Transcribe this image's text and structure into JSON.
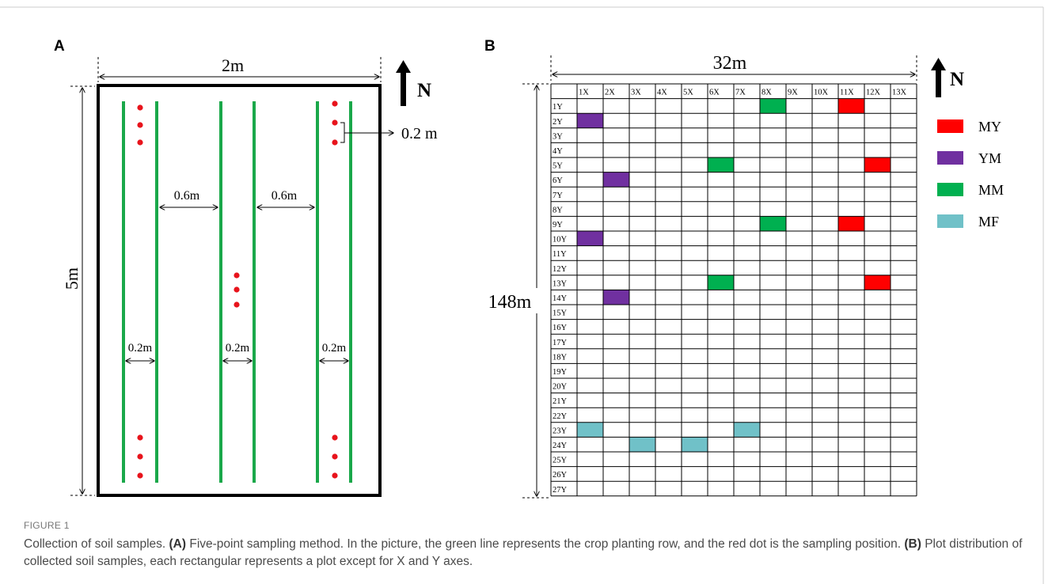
{
  "panel_a": {
    "label": "A",
    "width_label": "2m",
    "height_label": "5m",
    "north_label": "N",
    "gap_label": "0.2 m",
    "row_spacing_labels": [
      "0.6m",
      "0.6m"
    ],
    "row_width_labels": [
      "0.2m",
      "0.2m",
      "0.2m"
    ],
    "colors": {
      "row": "#1aa84a",
      "dot": "#e8141c",
      "border": "#000000"
    }
  },
  "panel_b": {
    "label": "B",
    "width_label": "32m",
    "height_label": "148m",
    "north_label": "N",
    "columns": [
      "1X",
      "2X",
      "3X",
      "4X",
      "5X",
      "6X",
      "7X",
      "8X",
      "9X",
      "10X",
      "11X",
      "12X",
      "13X"
    ],
    "rows": [
      "1Y",
      "2Y",
      "3Y",
      "4Y",
      "5Y",
      "6Y",
      "7Y",
      "8Y",
      "9Y",
      "10Y",
      "11Y",
      "12Y",
      "13Y",
      "14Y",
      "15Y",
      "16Y",
      "17Y",
      "18Y",
      "19Y",
      "20Y",
      "21Y",
      "22Y",
      "23Y",
      "24Y",
      "25Y",
      "26Y",
      "27Y"
    ],
    "legend": [
      {
        "key": "MY",
        "label": "MY",
        "color": "#ff0000"
      },
      {
        "key": "YM",
        "label": "YM",
        "color": "#7030a0"
      },
      {
        "key": "MM",
        "label": "MM",
        "color": "#00b050"
      },
      {
        "key": "MF",
        "label": "MF",
        "color": "#70c1c8"
      }
    ],
    "plots": [
      {
        "group": "MM",
        "col": 8,
        "row": 1
      },
      {
        "group": "MY",
        "col": 11,
        "row": 1
      },
      {
        "group": "YM",
        "col": 1,
        "row": 2
      },
      {
        "group": "MM",
        "col": 6,
        "row": 5
      },
      {
        "group": "MY",
        "col": 12,
        "row": 5
      },
      {
        "group": "YM",
        "col": 2,
        "row": 6
      },
      {
        "group": "MM",
        "col": 8,
        "row": 9
      },
      {
        "group": "MY",
        "col": 11,
        "row": 9
      },
      {
        "group": "YM",
        "col": 1,
        "row": 10
      },
      {
        "group": "MM",
        "col": 6,
        "row": 13
      },
      {
        "group": "MY",
        "col": 12,
        "row": 13
      },
      {
        "group": "YM",
        "col": 2,
        "row": 14
      },
      {
        "group": "MF",
        "col": 1,
        "row": 23
      },
      {
        "group": "MF",
        "col": 7,
        "row": 23
      },
      {
        "group": "MF",
        "col": 3,
        "row": 24
      },
      {
        "group": "MF",
        "col": 5,
        "row": 24
      }
    ]
  },
  "caption": {
    "label": "FIGURE 1",
    "title": "Collection of soil samples.",
    "part_a_label": "(A)",
    "part_a_text": "Five-point sampling method. In the picture, the green line represents the crop planting row, and the red dot is the sampling position.",
    "part_b_label": "(B)",
    "part_b_text": "Plot distribution of collected soil samples, each rectangular represents a plot except for X and Y axes."
  }
}
